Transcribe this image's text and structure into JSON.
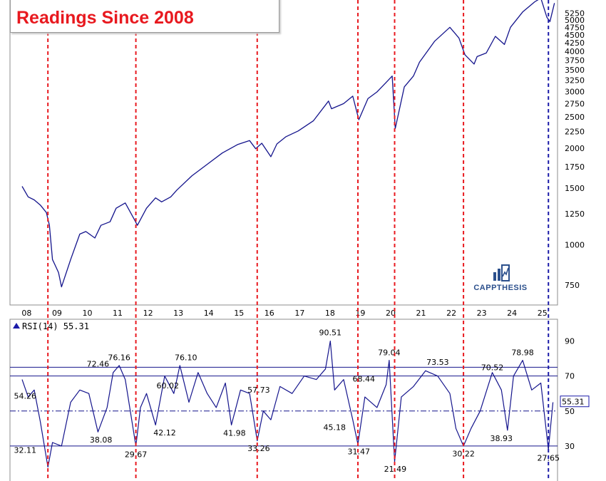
{
  "title": {
    "line1": "",
    "line2": "Readings Since 2008"
  },
  "watermark": {
    "name": "CAPPTHESIS",
    "icon": "chart-bars-icon"
  },
  "colors": {
    "price_line": "#14148c",
    "rsi_line": "#14148c",
    "red_marker": "#e8191f",
    "blue_marker": "#1a1aa8",
    "grid": "#000000",
    "title": "#e8191f"
  },
  "chart_data": [
    {
      "type": "line",
      "panel": "price",
      "scale": "log",
      "ylim": [
        650,
        5600
      ],
      "x_tick_labels": [
        "08",
        "09",
        "10",
        "11",
        "12",
        "13",
        "14",
        "15",
        "16",
        "17",
        "18",
        "19",
        "20",
        "21",
        "22",
        "23",
        "24",
        "25"
      ],
      "y_ticks": [
        750,
        1000,
        1250,
        1500,
        1750,
        2000,
        2250,
        2500,
        2750,
        3000,
        3250,
        3500,
        3750,
        4000,
        4250,
        4500,
        4750,
        5000,
        5250
      ],
      "series": [
        {
          "x": [
            2007.9,
            2008.1,
            2008.3,
            2008.5,
            2008.7,
            2008.8,
            2008.9,
            2009.0,
            2009.1,
            2009.2,
            2009.5,
            2009.8,
            2010.0,
            2010.3,
            2010.5,
            2010.8,
            2011.0,
            2011.3,
            2011.6,
            2011.7,
            2012.0,
            2012.3,
            2012.5,
            2012.8,
            2013.0,
            2013.5,
            2014.0,
            2014.5,
            2015.0,
            2015.4,
            2015.6,
            2015.8,
            2016.1,
            2016.3,
            2016.6,
            2017.0,
            2017.5,
            2018.0,
            2018.1,
            2018.5,
            2018.8,
            2019.0,
            2019.3,
            2019.6,
            2019.9,
            2020.1,
            2020.2,
            2020.5,
            2020.8,
            2021.0,
            2021.5,
            2022.0,
            2022.3,
            2022.5,
            2022.8,
            2022.9,
            2023.2,
            2023.5,
            2023.8,
            2024.0,
            2024.4,
            2024.8,
            2025.0,
            2025.2,
            2025.3,
            2025.45
          ],
          "y": [
            1520,
            1410,
            1380,
            1330,
            1260,
            1150,
            900,
            860,
            820,
            740,
            900,
            1080,
            1100,
            1050,
            1150,
            1180,
            1300,
            1350,
            1200,
            1150,
            1300,
            1400,
            1360,
            1410,
            1480,
            1640,
            1780,
            1930,
            2050,
            2110,
            1990,
            2070,
            1880,
            2060,
            2170,
            2260,
            2430,
            2800,
            2650,
            2750,
            2900,
            2450,
            2850,
            2990,
            3200,
            3350,
            2300,
            3100,
            3350,
            3700,
            4300,
            4750,
            4400,
            3900,
            3650,
            3850,
            3950,
            4450,
            4200,
            4750,
            5300,
            5700,
            5850,
            5100,
            4950,
            5650
          ]
        }
      ],
      "vertical_markers": [
        {
          "x": 2008.75,
          "color": "red"
        },
        {
          "x": 2011.65,
          "color": "red"
        },
        {
          "x": 2015.65,
          "color": "red"
        },
        {
          "x": 2018.97,
          "color": "red"
        },
        {
          "x": 2020.18,
          "color": "red"
        },
        {
          "x": 2022.45,
          "color": "red"
        },
        {
          "x": 2025.25,
          "color": "blue"
        }
      ]
    },
    {
      "type": "line",
      "panel": "rsi",
      "label": "RSI(14) 55.31",
      "last_value": "55.31",
      "ylim": [
        10,
        100
      ],
      "y_ticks": [
        90,
        70,
        50,
        30
      ],
      "reference_lines": [
        75,
        70,
        50,
        30
      ],
      "series": [
        {
          "x": [
            2007.9,
            2008.1,
            2008.3,
            2008.5,
            2008.75,
            2008.9,
            2009.2,
            2009.5,
            2009.8,
            2010.1,
            2010.4,
            2010.7,
            2010.9,
            2011.1,
            2011.3,
            2011.65,
            2011.8,
            2012.0,
            2012.3,
            2012.6,
            2012.9,
            2013.1,
            2013.4,
            2013.7,
            2014.0,
            2014.3,
            2014.6,
            2014.8,
            2015.1,
            2015.4,
            2015.65,
            2015.85,
            2016.1,
            2016.4,
            2016.8,
            2017.2,
            2017.6,
            2017.9,
            2018.06,
            2018.2,
            2018.5,
            2018.8,
            2018.97,
            2019.2,
            2019.6,
            2019.9,
            2020.0,
            2020.18,
            2020.4,
            2020.8,
            2021.2,
            2021.6,
            2022.0,
            2022.2,
            2022.45,
            2022.7,
            2023.0,
            2023.4,
            2023.7,
            2023.9,
            2024.1,
            2024.4,
            2024.7,
            2025.0,
            2025.25,
            2025.4
          ],
          "y": [
            68,
            58,
            62,
            44,
            18,
            32,
            30,
            55,
            62,
            60,
            38,
            52,
            72,
            76,
            68,
            30,
            52,
            60,
            42,
            70,
            60,
            76,
            55,
            72,
            60,
            52,
            66,
            42,
            62,
            60,
            33,
            50,
            45,
            64,
            60,
            70,
            68,
            74,
            90,
            62,
            68,
            45,
            31,
            58,
            52,
            65,
            79,
            21,
            58,
            64,
            73,
            70,
            60,
            40,
            30,
            40,
            50,
            72,
            62,
            39,
            70,
            79,
            62,
            66,
            28,
            55
          ]
        }
      ],
      "annotations": [
        {
          "x": 2008.0,
          "y": 54.26,
          "text": "54.26",
          "pos": "above"
        },
        {
          "x": 2008.0,
          "y": 32.11,
          "text": "32.11",
          "pos": "below"
        },
        {
          "x": 2010.4,
          "y": 72.46,
          "text": "72.46",
          "pos": "above"
        },
        {
          "x": 2010.5,
          "y": 38.08,
          "text": "38.08",
          "pos": "below"
        },
        {
          "x": 2011.1,
          "y": 76.16,
          "text": "76.16",
          "pos": "above"
        },
        {
          "x": 2011.65,
          "y": 29.67,
          "text": "29.67",
          "pos": "below"
        },
        {
          "x": 2012.7,
          "y": 60.02,
          "text": "60.02",
          "pos": "above"
        },
        {
          "x": 2012.6,
          "y": 42.12,
          "text": "42.12",
          "pos": "below"
        },
        {
          "x": 2013.3,
          "y": 76.1,
          "text": "76.10",
          "pos": "above"
        },
        {
          "x": 2014.9,
          "y": 41.98,
          "text": "41.98",
          "pos": "below"
        },
        {
          "x": 2015.7,
          "y": 57.73,
          "text": "57.73",
          "pos": "above"
        },
        {
          "x": 2015.7,
          "y": 33.26,
          "text": "33.26",
          "pos": "below"
        },
        {
          "x": 2018.06,
          "y": 90.51,
          "text": "90.51",
          "pos": "above"
        },
        {
          "x": 2018.7,
          "y": 68.44,
          "text": "68.44",
          "pos": "right"
        },
        {
          "x": 2018.2,
          "y": 45.18,
          "text": "45.18",
          "pos": "below"
        },
        {
          "x": 2019.0,
          "y": 31.47,
          "text": "31.47",
          "pos": "below"
        },
        {
          "x": 2020.0,
          "y": 79.04,
          "text": "79.04",
          "pos": "above"
        },
        {
          "x": 2020.2,
          "y": 21.49,
          "text": "21.49",
          "pos": "below"
        },
        {
          "x": 2021.6,
          "y": 73.53,
          "text": "73.53",
          "pos": "above"
        },
        {
          "x": 2022.45,
          "y": 30.22,
          "text": "30.22",
          "pos": "below"
        },
        {
          "x": 2023.4,
          "y": 70.52,
          "text": "70.52",
          "pos": "above"
        },
        {
          "x": 2023.7,
          "y": 38.93,
          "text": "38.93",
          "pos": "below"
        },
        {
          "x": 2024.4,
          "y": 78.98,
          "text": "78.98",
          "pos": "above"
        },
        {
          "x": 2025.25,
          "y": 27.65,
          "text": "27.65",
          "pos": "below"
        }
      ]
    }
  ]
}
